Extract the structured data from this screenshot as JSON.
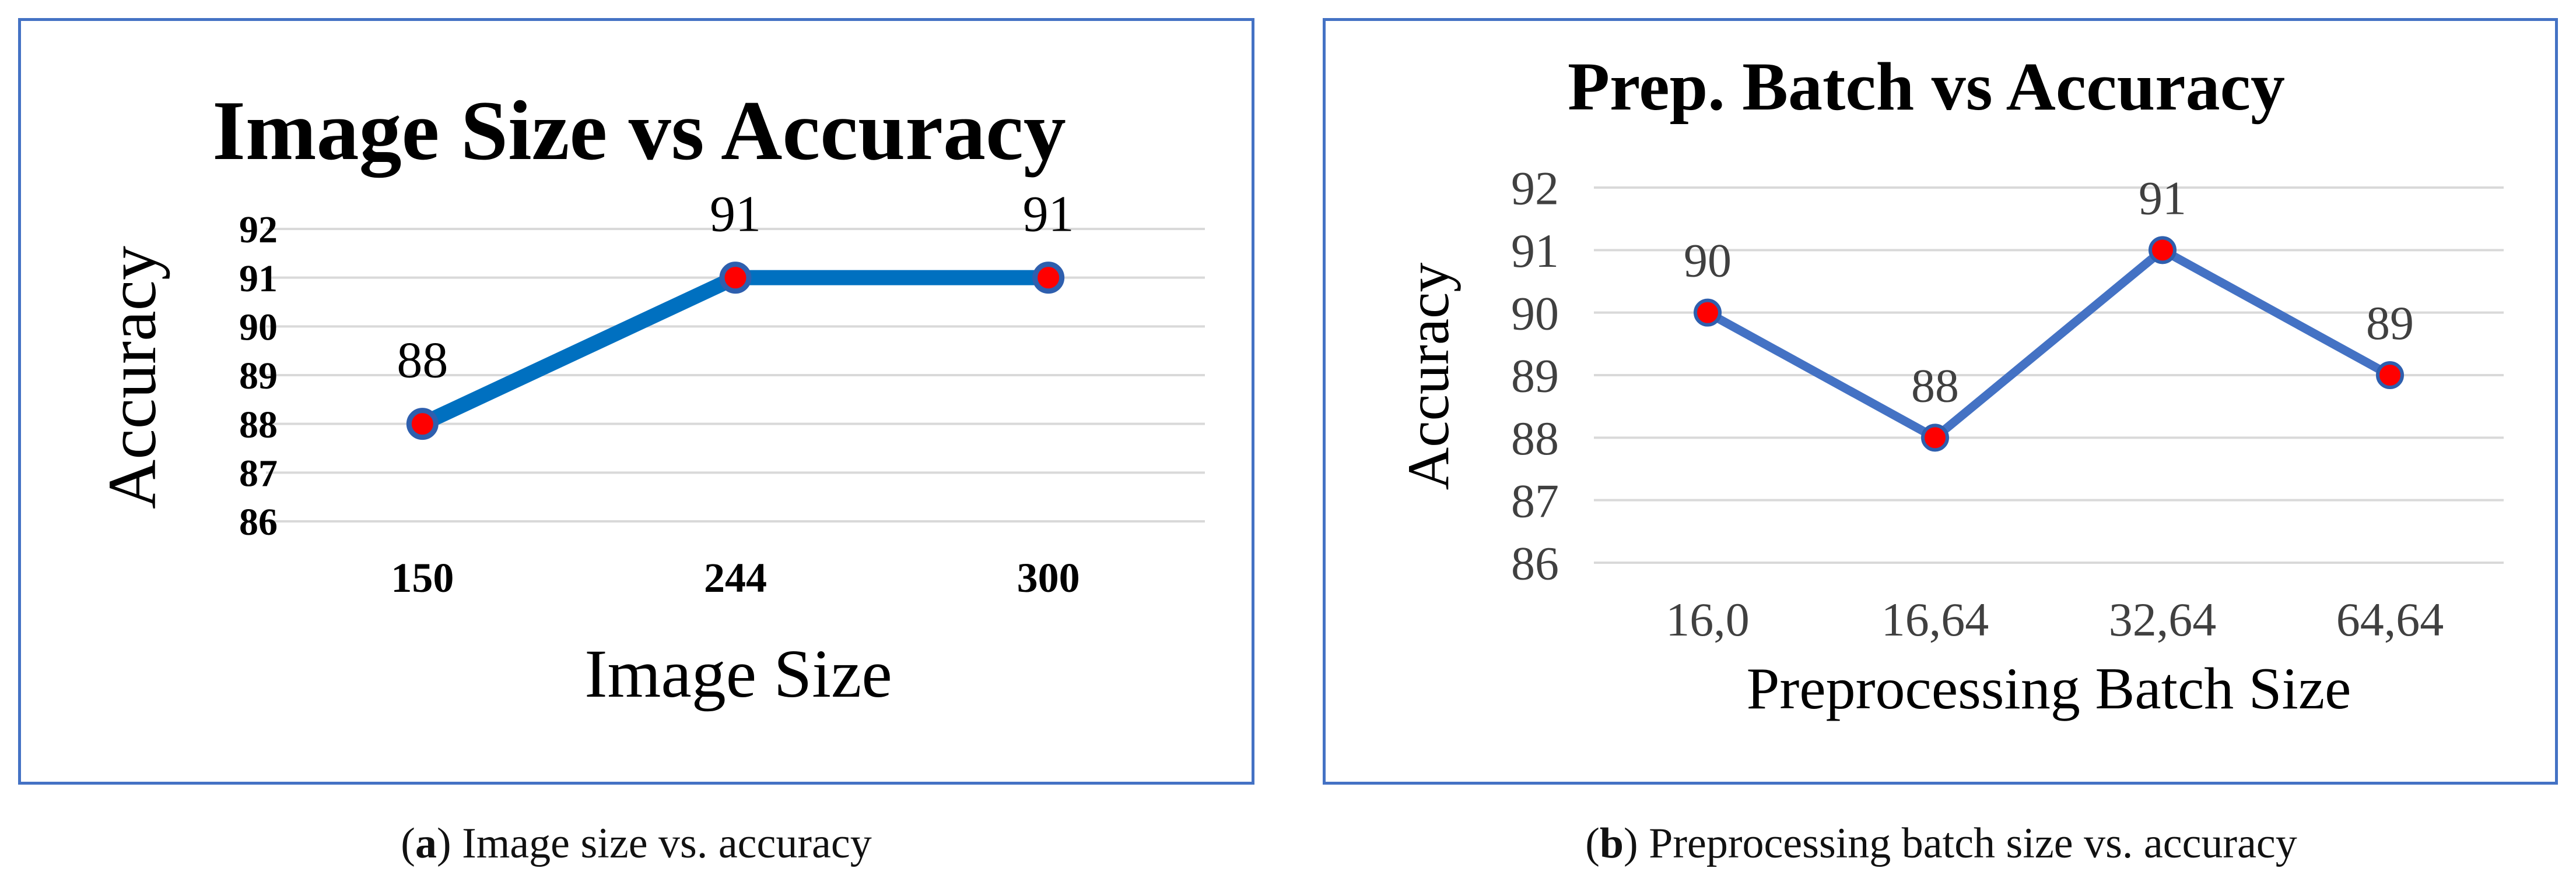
{
  "colors": {
    "panel_border": "#4472c4",
    "grid": "#d9d9d9",
    "marker": "#ff0000",
    "marker_edge": "#2e5fae"
  },
  "chart_data": [
    {
      "type": "line",
      "title": "Image Size vs Accuracy",
      "xlabel": "Image Size",
      "ylabel": "Accuracy",
      "categories": [
        "150",
        "244",
        "300"
      ],
      "series": [
        {
          "values": [
            88,
            91,
            91
          ],
          "color": "#0070c0"
        }
      ],
      "data_labels": [
        "88",
        "91",
        "91"
      ],
      "ylim": [
        86,
        92
      ],
      "yticks": [
        "86",
        "87",
        "88",
        "89",
        "90",
        "91",
        "92"
      ],
      "grid": true,
      "legend": "none",
      "caption_letter": "a",
      "caption_text": ") Image size vs. accuracy"
    },
    {
      "type": "line",
      "title": "Prep. Batch vs Accuracy",
      "xlabel": "Preprocessing Batch Size",
      "ylabel": "Accuracy",
      "categories": [
        "16,0",
        "16,64",
        "32,64",
        "64,64"
      ],
      "series": [
        {
          "values": [
            90,
            88,
            91,
            89
          ],
          "color": "#4472c4"
        }
      ],
      "data_labels": [
        "90",
        "88",
        "91",
        "89"
      ],
      "ylim": [
        86,
        92
      ],
      "yticks": [
        "86",
        "87",
        "88",
        "89",
        "90",
        "91",
        "92"
      ],
      "grid": true,
      "legend": "none",
      "caption_letter": "b",
      "caption_text": ") Preprocessing batch size vs. accuracy"
    }
  ]
}
